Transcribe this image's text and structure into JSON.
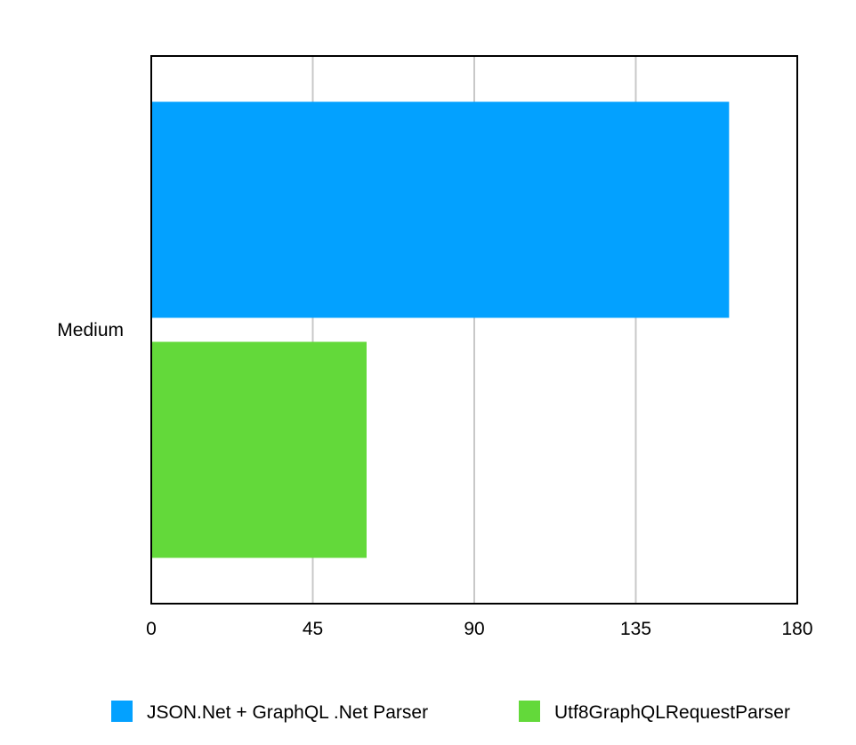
{
  "chart_data": {
    "type": "bar",
    "orientation": "horizontal",
    "categories": [
      "Medium"
    ],
    "series": [
      {
        "name": "JSON.Net + GraphQL .Net Parser",
        "color": "#03A1FF",
        "values": [
          161
        ]
      },
      {
        "name": "Utf8GraphQLRequestParser",
        "color": "#63D93A",
        "values": [
          60
        ]
      }
    ],
    "xlim": [
      0,
      180
    ],
    "xticks": [
      0,
      45,
      90,
      135,
      180
    ],
    "xtick_labels": [
      "0",
      "45",
      "90",
      "135",
      "180"
    ],
    "title": "",
    "xlabel": "",
    "ylabel": "",
    "grid": "vertical",
    "legend_position": "bottom"
  }
}
